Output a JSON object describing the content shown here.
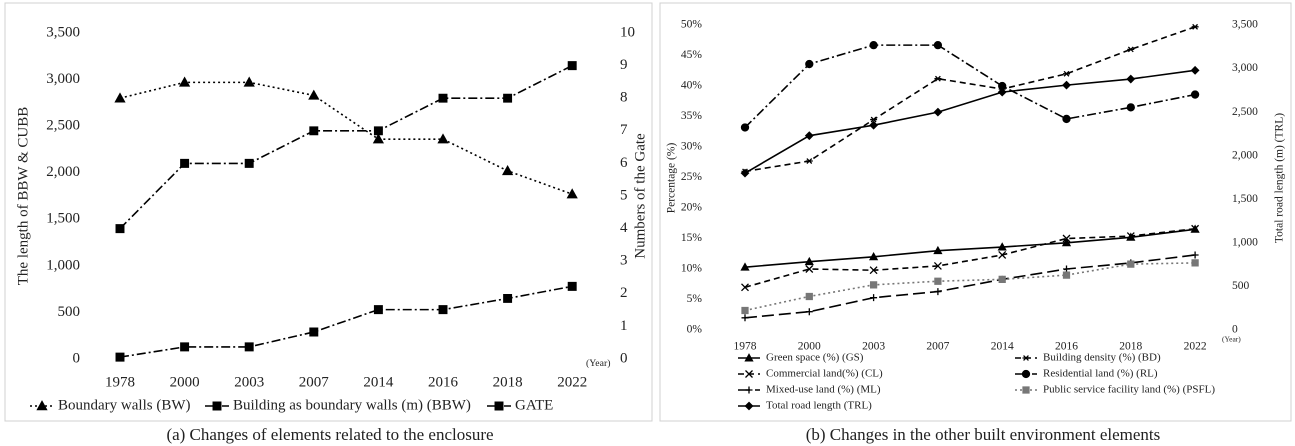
{
  "chart_data": [
    {
      "type": "line",
      "caption": "(a)    Changes of elements related to the enclosure",
      "y_label": "The length of BBW & CUBB",
      "y2_label": "Numbers of the Gate",
      "annotation": "(Year)",
      "categories": [
        "1978",
        "2000",
        "2003",
        "2007",
        "2014",
        "2016",
        "2018",
        "2022"
      ],
      "ylim": [
        0,
        3500
      ],
      "yticks": [
        0,
        500,
        {
          "value": 1000,
          "label": "1,000"
        },
        {
          "value": 1500,
          "label": "1,500"
        },
        {
          "value": 2000,
          "label": "2,000"
        },
        {
          "value": 2500,
          "label": "2,500"
        },
        {
          "value": 3000,
          "label": "3,000"
        },
        {
          "value": 3500,
          "label": "3,500"
        }
      ],
      "y2lim": [
        0,
        10
      ],
      "y2ticks": [
        0,
        1,
        2,
        3,
        4,
        5,
        6,
        7,
        8,
        9,
        10
      ],
      "grid": false,
      "series": [
        {
          "name": "Boundary walls (BW)",
          "color": "#000000",
          "line_style": "dotted",
          "marker": "triangle",
          "values": [
            2800,
            2970,
            2970,
            2830,
            2360,
            2360,
            2020,
            1770
          ]
        },
        {
          "name": "Building as boundary walls (m) (BBW)",
          "color": "#000000",
          "line_style": "dashdot",
          "marker": "square",
          "values": [
            20,
            130,
            130,
            290,
            530,
            530,
            650,
            780
          ]
        },
        {
          "name": "GATE",
          "color": "#000000",
          "line_style": "dashdot",
          "marker": "square",
          "axis": "y2",
          "values": [
            4,
            6,
            6,
            7,
            7,
            8,
            8,
            9
          ]
        }
      ]
    },
    {
      "type": "line",
      "caption": "(b)  Changes in the other built environment elements",
      "y_label": "Percentage (%)",
      "y2_label": "Total road length (m) (TRL)",
      "annotation": "(Year)",
      "categories": [
        "1978",
        "2000",
        "2003",
        "2007",
        "2014",
        "2016",
        "2018",
        "2022"
      ],
      "ylim": [
        0,
        50
      ],
      "yticks": [
        {
          "value": 0,
          "label": "0%"
        },
        {
          "value": 5,
          "label": "5%"
        },
        {
          "value": 10,
          "label": "10%"
        },
        {
          "value": 15,
          "label": "15%"
        },
        {
          "value": 20,
          "label": "20%"
        },
        {
          "value": 25,
          "label": "25%"
        },
        {
          "value": 30,
          "label": "30%"
        },
        {
          "value": 35,
          "label": "35%"
        },
        {
          "value": 40,
          "label": "40%"
        },
        {
          "value": 45,
          "label": "45%"
        },
        {
          "value": 50,
          "label": "50%"
        }
      ],
      "y2lim": [
        0,
        3500
      ],
      "y2ticks": [
        0,
        500,
        {
          "value": 1000,
          "label": "1,000"
        },
        {
          "value": 1500,
          "label": "1,500"
        },
        {
          "value": 2000,
          "label": "2,000"
        },
        {
          "value": 2500,
          "label": "2,500"
        },
        {
          "value": 3000,
          "label": "3,000"
        },
        {
          "value": 3500,
          "label": "3,500"
        }
      ],
      "grid": false,
      "series": [
        {
          "name": "Green space (%) (GS)",
          "color": "#000000",
          "line_style": "solid",
          "marker": "triangle",
          "values": [
            10.3,
            11.2,
            12.0,
            13.0,
            13.6,
            14.3,
            15.2,
            16.5
          ]
        },
        {
          "name": "Building density (%) (BD)",
          "color": "#000000",
          "line_style": "dashed",
          "marker": "star",
          "values": [
            26,
            27.7,
            34.5,
            41.2,
            39.5,
            42,
            46,
            49.7
          ]
        },
        {
          "name": "Commercial land(%) (CL)",
          "color": "#000000",
          "line_style": "dashed",
          "marker": "x",
          "values": [
            7,
            10,
            9.8,
            10.5,
            12.3,
            15,
            15.4,
            16.6
          ]
        },
        {
          "name": "Residential  land (%) (RL)",
          "color": "#000000",
          "line_style": "dashdot",
          "marker": "circle",
          "values": [
            33.2,
            43.6,
            46.7,
            46.7,
            40,
            34.6,
            36.5,
            38.6
          ]
        },
        {
          "name": "Mixed-use land (%) (ML)",
          "color": "#000000",
          "line_style": "longdash",
          "marker": "plus",
          "values": [
            2,
            3,
            5.3,
            6.3,
            8.3,
            10,
            11,
            12.3
          ]
        },
        {
          "name": "Public service facility land (%) (PSFL)",
          "color": "#777777",
          "line_style": "dotted",
          "marker": "square",
          "values": [
            3.2,
            5.5,
            7.4,
            8,
            8.3,
            9,
            10.8,
            11
          ]
        },
        {
          "name": "Total road length (TRL)",
          "color": "#000000",
          "line_style": "solid",
          "marker": "diamond",
          "axis": "y2",
          "values": [
            1800,
            2230,
            2350,
            2500,
            2730,
            2810,
            2880,
            2980
          ]
        }
      ]
    }
  ]
}
